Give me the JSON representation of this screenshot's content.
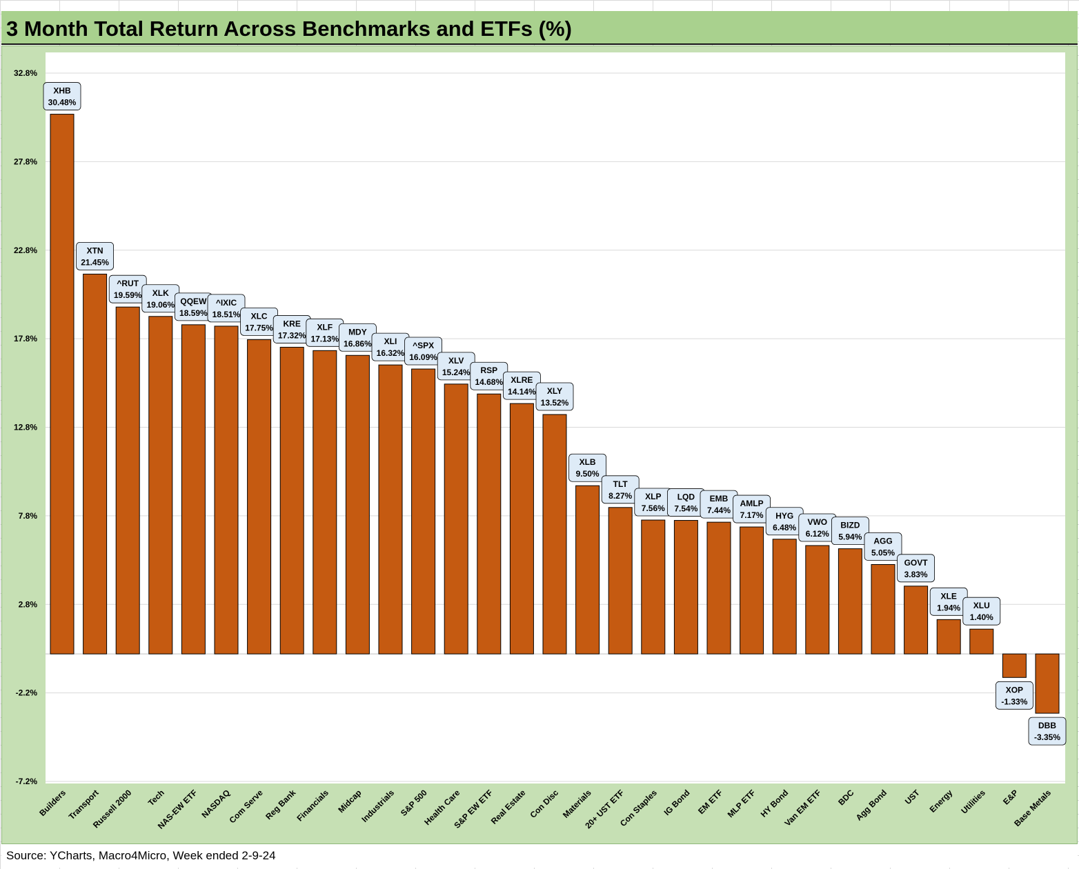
{
  "title": "3 Month Total Return Across Benchmarks and ETFs (%)",
  "source": "Source: YCharts, Macro4Micro, Week ended 2-9-24",
  "colors": {
    "bar": "#c55a11",
    "frame": "#c6e0b4",
    "title_bg": "#a9d18e",
    "label_bg": "#deebf7"
  },
  "chart_data": {
    "type": "bar",
    "title": "3 Month Total Return Across Benchmarks and ETFs (%)",
    "xlabel": "",
    "ylabel": "",
    "ylim": [
      -7.2,
      32.8
    ],
    "yticks": [
      "32.8%",
      "27.8%",
      "22.8%",
      "17.8%",
      "12.8%",
      "7.8%",
      "2.8%",
      "-2.2%",
      "-7.2%"
    ],
    "ytick_values": [
      32.8,
      27.8,
      22.8,
      17.8,
      12.8,
      7.8,
      2.8,
      -2.2,
      -7.2
    ],
    "grid": true,
    "legend": "none",
    "categories": [
      "Builders",
      "Transport",
      "Russell 2000",
      "Tech",
      "NAS-EW ETF",
      "NASDAQ",
      "Com Serve",
      "Reg Bank",
      "Financials",
      "Midcap",
      "Industrials",
      "S&P 500",
      "Health Care",
      "S&P EW ETF",
      "Real Estate",
      "Con Disc",
      "Materials",
      "20+ UST ETF",
      "Con Staples",
      "IG Bond",
      "EM ETF",
      "MLP ETF",
      "HY Bond",
      "Van EM ETF",
      "BDC",
      "Agg Bond",
      "UST",
      "Energy",
      "Utilities",
      "E&P",
      "Base Metals"
    ],
    "tickers": [
      "XHB",
      "XTN",
      "^RUT",
      "XLK",
      "QQEW",
      "^IXIC",
      "XLC",
      "KRE",
      "XLF",
      "MDY",
      "XLI",
      "^SPX",
      "XLV",
      "RSP",
      "XLRE",
      "XLY",
      "XLB",
      "TLT",
      "XLP",
      "LQD",
      "EMB",
      "AMLP",
      "HYG",
      "VWO",
      "BIZD",
      "AGG",
      "GOVT",
      "XLE",
      "XLU",
      "XOP",
      "DBB"
    ],
    "values": [
      30.48,
      21.45,
      19.59,
      19.06,
      18.59,
      18.51,
      17.75,
      17.32,
      17.13,
      16.86,
      16.32,
      16.09,
      15.24,
      14.68,
      14.14,
      13.52,
      9.5,
      8.27,
      7.56,
      7.54,
      7.44,
      7.17,
      6.48,
      6.12,
      5.94,
      5.05,
      3.83,
      1.94,
      1.4,
      -1.33,
      -3.35
    ],
    "value_labels": [
      "30.48%",
      "21.45%",
      "19.59%",
      "19.06%",
      "18.59%",
      "18.51%",
      "17.75%",
      "17.32%",
      "17.13%",
      "16.86%",
      "16.32%",
      "16.09%",
      "15.24%",
      "14.68%",
      "14.14%",
      "13.52%",
      "9.50%",
      "8.27%",
      "7.56%",
      "7.54%",
      "7.44%",
      "7.17%",
      "6.48%",
      "6.12%",
      "5.94%",
      "5.05%",
      "3.83%",
      "1.94%",
      "1.40%",
      "-1.33%",
      "-3.35%"
    ]
  }
}
